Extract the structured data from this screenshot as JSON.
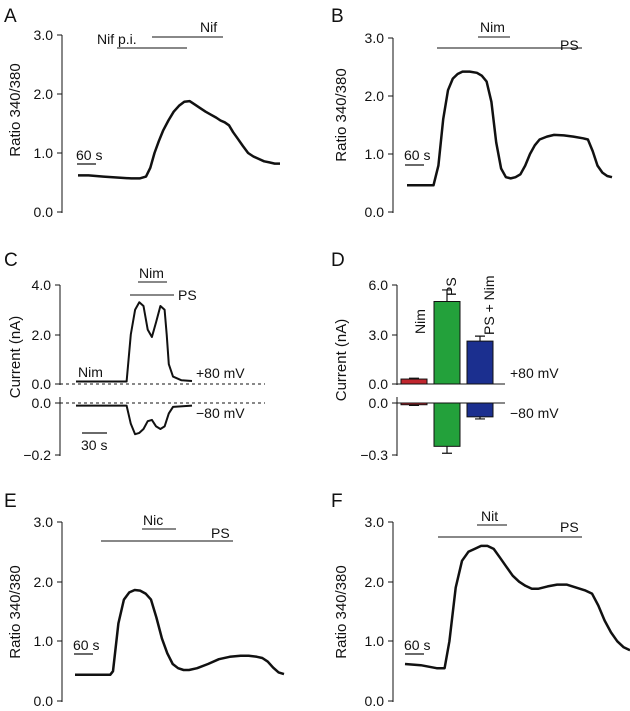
{
  "chart_data": [
    {
      "type": "line",
      "panel": "A",
      "ylabel": "Ratio 340/380",
      "ylim": [
        0,
        3
      ],
      "yticks": [
        "0.0",
        "1.0",
        "2.0",
        "3.0"
      ],
      "scalebar": "60 s",
      "bars": [
        {
          "label": "Nif p.i."
        },
        {
          "label": "Nif"
        }
      ],
      "series": [
        {
          "name": "Ratio",
          "values": [
            [
              0,
              0.62
            ],
            [
              10,
              0.62
            ],
            [
              24,
              0.6
            ],
            [
              40,
              0.58
            ],
            [
              50,
              0.57
            ],
            [
              58,
              0.57
            ],
            [
              64,
              0.6
            ],
            [
              68,
              0.75
            ],
            [
              72,
              1.0
            ],
            [
              76,
              1.2
            ],
            [
              80,
              1.38
            ],
            [
              85,
              1.55
            ],
            [
              90,
              1.7
            ],
            [
              95,
              1.8
            ],
            [
              100,
              1.87
            ],
            [
              105,
              1.88
            ],
            [
              110,
              1.82
            ],
            [
              115,
              1.76
            ],
            [
              120,
              1.7
            ],
            [
              125,
              1.65
            ],
            [
              130,
              1.6
            ],
            [
              134,
              1.55
            ],
            [
              138,
              1.52
            ],
            [
              142,
              1.47
            ],
            [
              146,
              1.35
            ],
            [
              150,
              1.25
            ],
            [
              155,
              1.12
            ],
            [
              160,
              1.0
            ],
            [
              165,
              0.94
            ],
            [
              170,
              0.9
            ],
            [
              175,
              0.86
            ],
            [
              180,
              0.84
            ],
            [
              185,
              0.82
            ],
            [
              190,
              0.82
            ]
          ]
        }
      ]
    },
    {
      "type": "line",
      "panel": "B",
      "ylabel": "Ratio 340/380",
      "ylim": [
        0,
        3
      ],
      "yticks": [
        "0.0",
        "1.0",
        "2.0",
        "3.0"
      ],
      "scalebar": "60 s",
      "bars": [
        {
          "label": "Nim"
        },
        {
          "label": "PS"
        }
      ],
      "series": [
        {
          "name": "Ratio",
          "values": [
            [
              0,
              0.46
            ],
            [
              10,
              0.46
            ],
            [
              18,
              0.46
            ],
            [
              22,
              0.46
            ],
            [
              26,
              0.8
            ],
            [
              30,
              1.6
            ],
            [
              34,
              2.1
            ],
            [
              38,
              2.3
            ],
            [
              42,
              2.38
            ],
            [
              46,
              2.42
            ],
            [
              52,
              2.42
            ],
            [
              58,
              2.4
            ],
            [
              62,
              2.35
            ],
            [
              66,
              2.25
            ],
            [
              70,
              1.9
            ],
            [
              74,
              1.2
            ],
            [
              78,
              0.75
            ],
            [
              82,
              0.6
            ],
            [
              86,
              0.58
            ],
            [
              90,
              0.6
            ],
            [
              94,
              0.65
            ],
            [
              98,
              0.8
            ],
            [
              102,
              1.0
            ],
            [
              106,
              1.15
            ],
            [
              110,
              1.25
            ],
            [
              116,
              1.3
            ],
            [
              122,
              1.33
            ],
            [
              130,
              1.32
            ],
            [
              138,
              1.3
            ],
            [
              146,
              1.27
            ],
            [
              150,
              1.25
            ],
            [
              154,
              1.05
            ],
            [
              158,
              0.8
            ],
            [
              162,
              0.68
            ],
            [
              166,
              0.62
            ],
            [
              170,
              0.6
            ]
          ]
        }
      ]
    },
    {
      "type": "line",
      "panel": "C",
      "ylabel": "Current (nA)",
      "yticks_top": [
        "0.0",
        "2.0",
        "4.0"
      ],
      "ylim_top": [
        0,
        4
      ],
      "yticks_bottom": [
        "0.0",
        "−0.2"
      ],
      "ylim_bottom": [
        -0.2,
        0
      ],
      "scalebar": "30 s",
      "bars": [
        {
          "label": "Nim"
        },
        {
          "label": "Nim"
        },
        {
          "label": "PS"
        }
      ],
      "voltages": [
        "+80 mV",
        "−80 mV"
      ],
      "series": [
        {
          "name": "+80 mV",
          "values": [
            [
              0,
              0.1
            ],
            [
              20,
              0.1
            ],
            [
              40,
              0.1
            ],
            [
              48,
              0.1
            ],
            [
              52,
              2.0
            ],
            [
              56,
              3.0
            ],
            [
              60,
              3.3
            ],
            [
              64,
              3.15
            ],
            [
              68,
              2.2
            ],
            [
              72,
              1.9
            ],
            [
              76,
              2.5
            ],
            [
              80,
              3.15
            ],
            [
              84,
              3.0
            ],
            [
              86,
              2.0
            ],
            [
              88,
              0.8
            ],
            [
              92,
              0.3
            ],
            [
              100,
              0.15
            ],
            [
              110,
              0.12
            ]
          ]
        },
        {
          "name": "−80 mV",
          "values": [
            [
              0,
              -0.01
            ],
            [
              48,
              -0.01
            ],
            [
              52,
              -0.08
            ],
            [
              56,
              -0.12
            ],
            [
              60,
              -0.115
            ],
            [
              64,
              -0.1
            ],
            [
              68,
              -0.07
            ],
            [
              72,
              -0.065
            ],
            [
              76,
              -0.09
            ],
            [
              80,
              -0.1
            ],
            [
              84,
              -0.09
            ],
            [
              88,
              -0.04
            ],
            [
              92,
              -0.015
            ],
            [
              110,
              -0.01
            ]
          ]
        }
      ]
    },
    {
      "type": "bar",
      "panel": "D",
      "ylabel": "Current (nA)",
      "yticks_top": [
        "0.0",
        "3.0",
        "6.0"
      ],
      "ylim_top": [
        0,
        6
      ],
      "yticks_bottom": [
        "0.0",
        "−0.3"
      ],
      "ylim_bottom": [
        -0.3,
        0
      ],
      "categories": [
        "Nim",
        "PS",
        "PS + Nim"
      ],
      "colors": [
        "#c0262e",
        "#23a13b",
        "#1b2f8f"
      ],
      "values_pos": [
        0.3,
        5.0,
        2.6
      ],
      "errors_pos": [
        0.05,
        0.7,
        0.3
      ],
      "values_neg": [
        -0.01,
        -0.25,
        -0.08
      ],
      "errors_neg": [
        0.004,
        0.04,
        0.012
      ],
      "voltages": [
        "+80 mV",
        "−80 mV"
      ]
    },
    {
      "type": "line",
      "panel": "E",
      "ylabel": "Ratio 340/380",
      "ylim": [
        0,
        3
      ],
      "yticks": [
        "0.0",
        "1.0",
        "2.0",
        "3.0"
      ],
      "scalebar": "60 s",
      "bars": [
        {
          "label": "Nic"
        },
        {
          "label": "PS"
        }
      ],
      "series": [
        {
          "name": "Ratio",
          "values": [
            [
              0,
              0.44
            ],
            [
              15,
              0.44
            ],
            [
              26,
              0.44
            ],
            [
              28,
              0.5
            ],
            [
              32,
              1.3
            ],
            [
              36,
              1.7
            ],
            [
              40,
              1.82
            ],
            [
              44,
              1.86
            ],
            [
              48,
              1.85
            ],
            [
              52,
              1.8
            ],
            [
              56,
              1.7
            ],
            [
              60,
              1.4
            ],
            [
              64,
              1.05
            ],
            [
              68,
              0.8
            ],
            [
              72,
              0.62
            ],
            [
              76,
              0.55
            ],
            [
              80,
              0.52
            ],
            [
              84,
              0.52
            ],
            [
              90,
              0.55
            ],
            [
              98,
              0.62
            ],
            [
              106,
              0.7
            ],
            [
              114,
              0.74
            ],
            [
              122,
              0.76
            ],
            [
              128,
              0.76
            ],
            [
              134,
              0.74
            ],
            [
              138,
              0.72
            ],
            [
              142,
              0.66
            ],
            [
              146,
              0.56
            ],
            [
              150,
              0.48
            ],
            [
              154,
              0.45
            ]
          ]
        }
      ]
    },
    {
      "type": "line",
      "panel": "F",
      "ylabel": "Ratio 340/380",
      "ylim": [
        0,
        3
      ],
      "yticks": [
        "0.0",
        "1.0",
        "2.0",
        "3.0"
      ],
      "scalebar": "60 s",
      "bars": [
        {
          "label": "Nit"
        },
        {
          "label": "PS"
        }
      ],
      "series": [
        {
          "name": "Ratio",
          "values": [
            [
              0,
              0.62
            ],
            [
              10,
              0.6
            ],
            [
              20,
              0.55
            ],
            [
              25,
              0.55
            ],
            [
              28,
              1.0
            ],
            [
              32,
              1.9
            ],
            [
              36,
              2.35
            ],
            [
              40,
              2.5
            ],
            [
              44,
              2.55
            ],
            [
              48,
              2.6
            ],
            [
              52,
              2.6
            ],
            [
              56,
              2.55
            ],
            [
              60,
              2.4
            ],
            [
              64,
              2.25
            ],
            [
              68,
              2.1
            ],
            [
              72,
              2.0
            ],
            [
              76,
              1.93
            ],
            [
              80,
              1.88
            ],
            [
              84,
              1.88
            ],
            [
              90,
              1.92
            ],
            [
              96,
              1.95
            ],
            [
              102,
              1.95
            ],
            [
              108,
              1.9
            ],
            [
              114,
              1.85
            ],
            [
              118,
              1.8
            ],
            [
              122,
              1.6
            ],
            [
              126,
              1.35
            ],
            [
              130,
              1.15
            ],
            [
              134,
              1.0
            ],
            [
              138,
              0.9
            ],
            [
              142,
              0.85
            ]
          ]
        }
      ]
    }
  ]
}
